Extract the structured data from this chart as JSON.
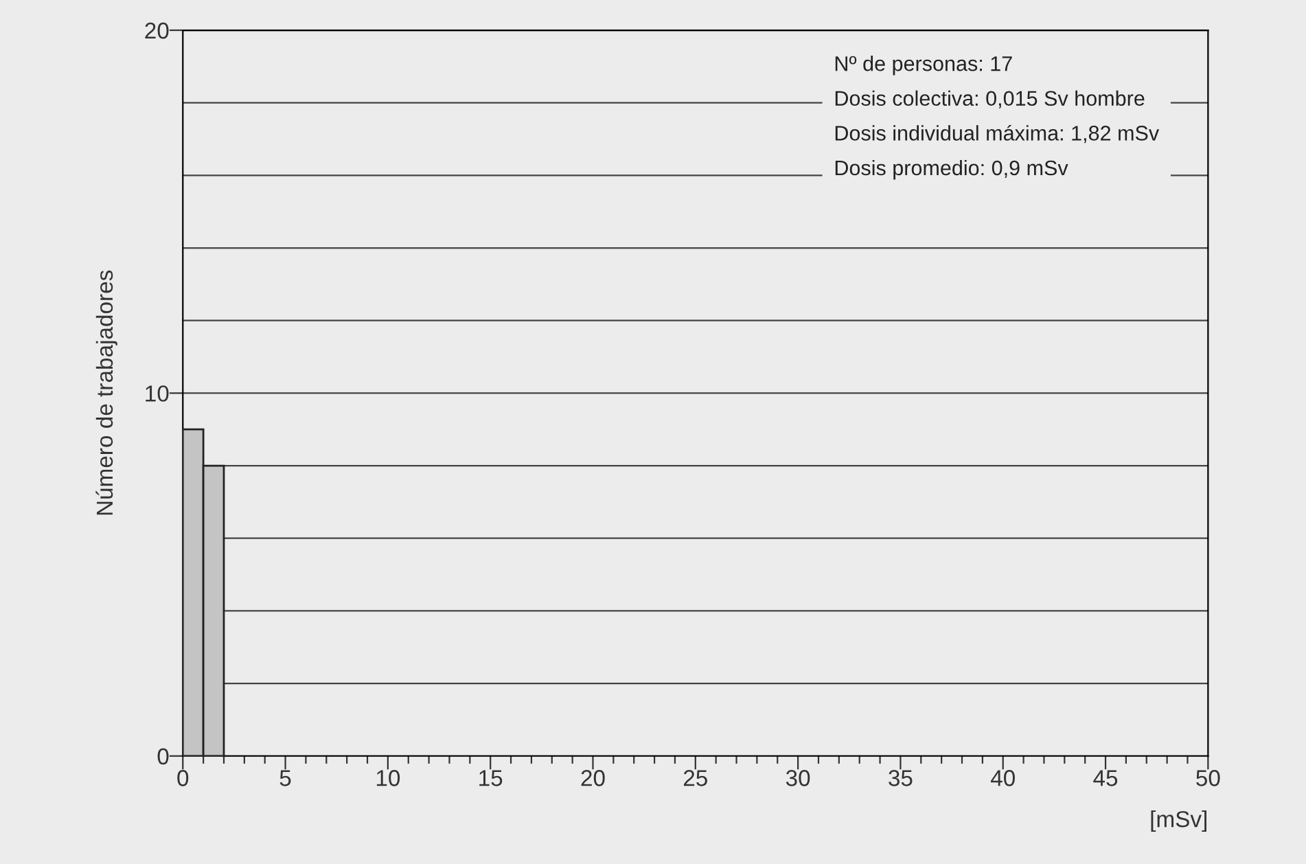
{
  "chart_data": {
    "type": "histogram",
    "bins": [
      0,
      1,
      2
    ],
    "values": [
      9,
      8
    ],
    "color": "#c4c4c4",
    "xlabel": "[mSv]",
    "ylabel": "Número de trabajadores",
    "xlim": [
      0,
      50
    ],
    "xticks": [
      0,
      {
        "value": 1,
        "label": null
      },
      {
        "value": 2,
        "label": null
      },
      {
        "value": 3,
        "label": null
      },
      {
        "value": 4,
        "label": null
      },
      5,
      {
        "value": 6,
        "label": null
      },
      {
        "value": 7,
        "label": null
      },
      {
        "value": 8,
        "label": null
      },
      {
        "value": 9,
        "label": null
      },
      10,
      {
        "value": 11,
        "label": null
      },
      {
        "value": 12,
        "label": null
      },
      {
        "value": 13,
        "label": null
      },
      {
        "value": 14,
        "label": null
      },
      15,
      {
        "value": 16,
        "label": null
      },
      {
        "value": 17,
        "label": null
      },
      {
        "value": 18,
        "label": null
      },
      {
        "value": 19,
        "label": null
      },
      20,
      {
        "value": 21,
        "label": null
      },
      {
        "value": 22,
        "label": null
      },
      {
        "value": 23,
        "label": null
      },
      {
        "value": 24,
        "label": null
      },
      25,
      {
        "value": 26,
        "label": null
      },
      {
        "value": 27,
        "label": null
      },
      {
        "value": 28,
        "label": null
      },
      {
        "value": 29,
        "label": null
      },
      30,
      {
        "value": 31,
        "label": null
      },
      {
        "value": 32,
        "label": null
      },
      {
        "value": 33,
        "label": null
      },
      {
        "value": 34,
        "label": null
      },
      35,
      {
        "value": 36,
        "label": null
      },
      {
        "value": 37,
        "label": null
      },
      {
        "value": 38,
        "label": null
      },
      {
        "value": 39,
        "label": null
      },
      40,
      {
        "value": 41,
        "label": null
      },
      {
        "value": 42,
        "label": null
      },
      {
        "value": 43,
        "label": null
      },
      {
        "value": 44,
        "label": null
      },
      45,
      {
        "value": 46,
        "label": null
      },
      {
        "value": 47,
        "label": null
      },
      {
        "value": 48,
        "label": null
      },
      {
        "value": 49,
        "label": null
      },
      50
    ],
    "ylim": [
      0,
      20
    ],
    "yticks": [
      0,
      {
        "value": 2,
        "label": null
      },
      {
        "value": 4,
        "label": null
      },
      {
        "value": 6,
        "label": null
      },
      {
        "value": 8,
        "label": null
      },
      10,
      {
        "value": 12,
        "label": null
      },
      {
        "value": 14,
        "label": null
      },
      {
        "value": 16,
        "label": null
      },
      {
        "value": 18,
        "label": null
      },
      20
    ],
    "grid": "y",
    "annotations": [
      "Nº de personas: 17",
      "Dosis colectiva: 0,015 Sv hombre",
      "Dosis individual máxima: 1,82 mSv",
      "Dosis promedio: 0,9 mSv"
    ]
  }
}
